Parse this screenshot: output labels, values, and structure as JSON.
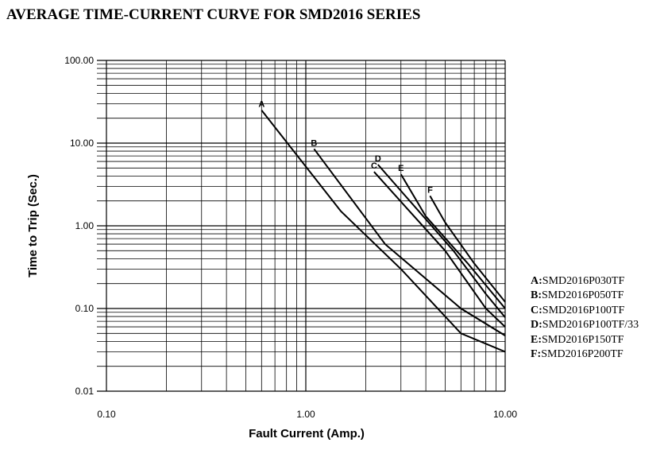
{
  "chart_data": {
    "type": "line",
    "title": "AVERAGE TIME-CURRENT CURVE FOR SMD2016 SERIES",
    "xlabel": "Fault Current (Amp.)",
    "ylabel": "Time to Trip (Sec.)",
    "x_scale": "log",
    "y_scale": "log",
    "xlim": [
      0.1,
      10
    ],
    "ylim": [
      0.01,
      100
    ],
    "x_ticks": [
      "0.10",
      "1.00",
      "10.00"
    ],
    "y_ticks": [
      "100.00",
      "10.00",
      "1.00",
      "0.10",
      "0.01"
    ],
    "grid": true,
    "legend_position": "right",
    "series": [
      {
        "name": "A",
        "legend_label": "SMD2016P030TF",
        "points": [
          [
            0.6,
            25
          ],
          [
            1.5,
            1.5
          ],
          [
            3,
            0.3
          ],
          [
            6,
            0.05
          ],
          [
            10,
            0.03
          ]
        ]
      },
      {
        "name": "B",
        "legend_label": "SMD2016P050TF",
        "points": [
          [
            1.1,
            8.5
          ],
          [
            2.5,
            0.6
          ],
          [
            6,
            0.1
          ],
          [
            10,
            0.047
          ]
        ]
      },
      {
        "name": "C",
        "legend_label": "SMD2016P100TF",
        "points": [
          [
            2.2,
            4.5
          ],
          [
            5,
            0.5
          ],
          [
            8,
            0.1
          ],
          [
            10,
            0.06
          ]
        ]
      },
      {
        "name": "D",
        "legend_label": "SMD2016P100TF/33",
        "points": [
          [
            2.3,
            5.5
          ],
          [
            5.5,
            0.5
          ],
          [
            8,
            0.15
          ],
          [
            10,
            0.078
          ]
        ]
      },
      {
        "name": "E",
        "legend_label": "SMD2016P150TF",
        "points": [
          [
            3,
            4.2
          ],
          [
            4,
            1.3
          ],
          [
            6.5,
            0.35
          ],
          [
            10,
            0.1
          ]
        ]
      },
      {
        "name": "F",
        "legend_label": "SMD2016P200TF",
        "points": [
          [
            4.2,
            2.3
          ],
          [
            5,
            1.1
          ],
          [
            7,
            0.35
          ],
          [
            10,
            0.12
          ]
        ]
      }
    ]
  }
}
